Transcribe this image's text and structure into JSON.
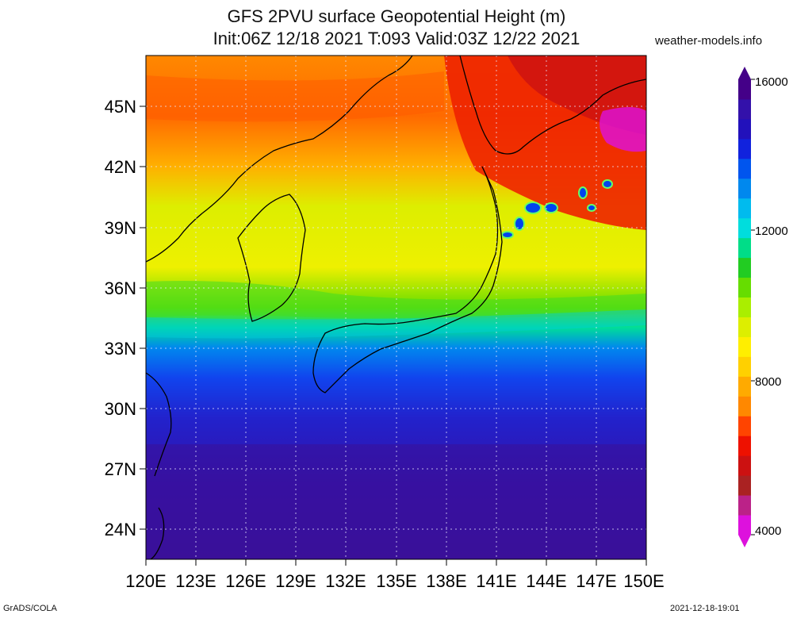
{
  "title_line1": "GFS 2PVU surface Geopotential Height (m)",
  "title_line2": "Init:06Z 12/18 2021 T:093 Valid:03Z 12/22 2021",
  "credit": "weather-models.info",
  "footer_left": "GrADS/COLA",
  "footer_right": "2021-12-18-19:01",
  "lat_labels": [
    "45N",
    "42N",
    "39N",
    "36N",
    "33N",
    "30N",
    "27N",
    "24N"
  ],
  "lon_labels": [
    "120E",
    "123E",
    "126E",
    "129E",
    "132E",
    "135E",
    "138E",
    "141E",
    "144E",
    "147E",
    "150E"
  ],
  "colorbar": {
    "labels": [
      "16000",
      "12000",
      "8000",
      "4000"
    ],
    "colors": [
      "#dd11dd",
      "#bb2288",
      "#aa2222",
      "#cc1111",
      "#ee1100",
      "#ff4400",
      "#ff8800",
      "#ffaa00",
      "#ffd000",
      "#ffee00",
      "#ddee00",
      "#aaee00",
      "#66dd00",
      "#22cc22",
      "#00dd88",
      "#00dddd",
      "#00bbee",
      "#0088ee",
      "#0055ee",
      "#1122dd",
      "#2211bb",
      "#3311aa",
      "#440088"
    ]
  }
}
